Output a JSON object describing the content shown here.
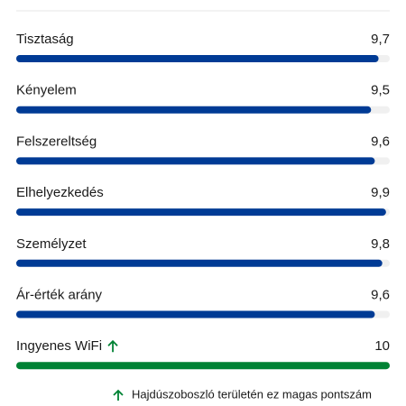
{
  "ratings": {
    "scale": [
      0,
      10
    ],
    "items": [
      {
        "label": "Tisztaság",
        "score": "9,7",
        "value": 9.7,
        "color": "#003b95"
      },
      {
        "label": "Kényelem",
        "score": "9,5",
        "value": 9.5,
        "color": "#003b95"
      },
      {
        "label": "Felszereltség",
        "score": "9,6",
        "value": 9.6,
        "color": "#003b95"
      },
      {
        "label": "Elhelyezkedés",
        "score": "9,9",
        "value": 9.9,
        "color": "#003b95"
      },
      {
        "label": "Személyzet",
        "score": "9,8",
        "value": 9.8,
        "color": "#003b95"
      },
      {
        "label": "Ár-érték arány",
        "score": "9,6",
        "value": 9.6,
        "color": "#003b95"
      },
      {
        "label": "Ingyenes WiFi",
        "score": "10",
        "value": 10,
        "color": "#008234"
      }
    ]
  },
  "footer": {
    "text": "Hajdúszoboszló területén ez magas pontszám"
  }
}
